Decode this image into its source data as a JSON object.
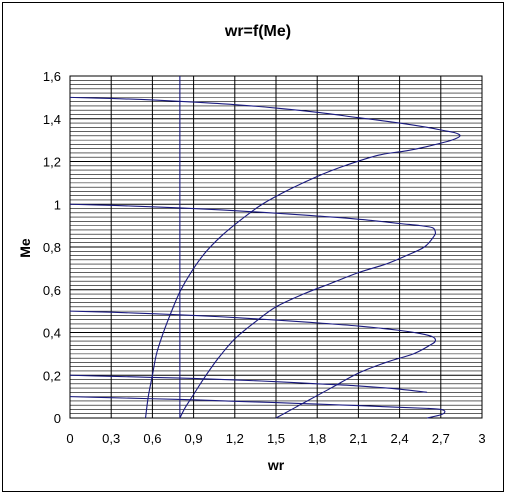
{
  "chart_data": {
    "type": "line",
    "title": "wr=f(Me)",
    "xlabel": "wr",
    "ylabel": "Me",
    "xlim": [
      0,
      3
    ],
    "ylim": [
      0,
      1.6
    ],
    "x_ticks": [
      "0",
      "0,3",
      "0,6",
      "0,9",
      "1,2",
      "1,5",
      "1,8",
      "2,1",
      "2,4",
      "2,7",
      "3"
    ],
    "y_ticks": [
      "0",
      "0,2",
      "0,4",
      "0,6",
      "0,8",
      "1",
      "1,2",
      "1,4",
      "1,6"
    ],
    "grid": true,
    "minor_y_step": 0.02,
    "line_color": "#1a1a80",
    "series": [
      {
        "x": [
          0,
          0.3,
          0.6,
          0.9,
          1.2,
          1.5,
          1.8,
          2.1,
          2.4,
          2.6,
          2.72,
          2.8,
          2.84,
          2.78,
          2.6,
          2.45,
          2.25,
          2.0,
          1.8,
          1.6,
          1.4,
          1.25,
          1.1,
          0.98,
          0.88,
          0.8,
          0.74,
          0.68,
          0.63,
          0.6,
          0.57,
          0.55
        ],
        "y": [
          1.5,
          1.495,
          1.488,
          1.478,
          1.466,
          1.45,
          1.43,
          1.405,
          1.38,
          1.36,
          1.345,
          1.335,
          1.32,
          1.3,
          1.27,
          1.25,
          1.23,
          1.18,
          1.13,
          1.07,
          1.0,
          0.93,
          0.85,
          0.77,
          0.68,
          0.59,
          0.5,
          0.4,
          0.3,
          0.2,
          0.1,
          0.0
        ]
      },
      {
        "x": [
          0,
          0.3,
          0.6,
          0.9,
          1.2,
          1.5,
          1.8,
          2.1,
          2.4,
          2.55,
          2.64,
          2.66,
          2.65,
          2.58,
          2.45,
          2.3,
          2.1,
          1.9,
          1.7,
          1.5,
          1.35,
          1.2,
          1.08,
          0.98,
          0.9,
          0.84,
          0.8
        ],
        "y": [
          1.0,
          0.995,
          0.988,
          0.98,
          0.97,
          0.958,
          0.945,
          0.93,
          0.91,
          0.9,
          0.89,
          0.87,
          0.85,
          0.8,
          0.76,
          0.72,
          0.68,
          0.63,
          0.58,
          0.52,
          0.45,
          0.37,
          0.28,
          0.19,
          0.11,
          0.05,
          0.0
        ]
      },
      {
        "x": [
          0,
          0.3,
          0.6,
          0.9,
          1.2,
          1.5,
          1.8,
          2.1,
          2.4,
          2.55,
          2.64,
          2.66,
          2.62,
          2.5,
          2.3,
          2.1,
          1.9,
          1.7,
          1.5
        ],
        "y": [
          0.5,
          0.495,
          0.488,
          0.48,
          0.47,
          0.458,
          0.445,
          0.43,
          0.41,
          0.395,
          0.38,
          0.36,
          0.34,
          0.3,
          0.26,
          0.21,
          0.14,
          0.07,
          0.0
        ]
      },
      {
        "x": [
          0,
          0.3,
          0.6,
          0.9,
          1.2,
          1.5,
          1.8,
          2.1,
          2.4,
          2.6
        ],
        "y": [
          0.2,
          0.195,
          0.19,
          0.185,
          0.178,
          0.17,
          0.16,
          0.15,
          0.135,
          0.12
        ]
      },
      {
        "x": [
          0,
          0.3,
          0.6,
          0.9,
          1.2,
          1.5,
          1.8,
          2.1,
          2.4,
          2.6,
          2.7,
          2.73,
          2.7,
          2.6
        ],
        "y": [
          0.1,
          0.095,
          0.09,
          0.085,
          0.078,
          0.072,
          0.065,
          0.058,
          0.05,
          0.045,
          0.04,
          0.03,
          0.015,
          0.0
        ]
      },
      {
        "x": [
          0.8,
          0.8
        ],
        "y": [
          0,
          1.6
        ]
      }
    ]
  }
}
